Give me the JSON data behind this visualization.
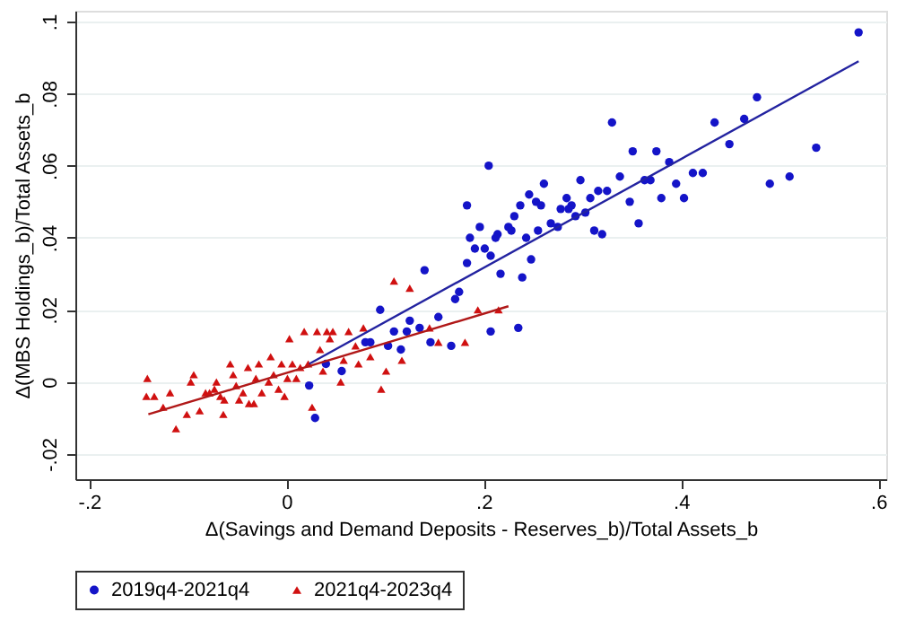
{
  "chart_data": {
    "type": "scatter",
    "xlabel": "Δ(Savings and Demand Deposits - Reserves_b)/Total Assets_b",
    "ylabel": "Δ(MBS Holdings_b)/Total Assets_b",
    "xlim": [
      -0.214,
      0.608
    ],
    "ylim": [
      -0.027,
      0.103
    ],
    "xticks": [
      {
        "value": -0.2,
        "label": "-.2"
      },
      {
        "value": 0,
        "label": "0"
      },
      {
        "value": 0.2,
        "label": ".2"
      },
      {
        "value": 0.4,
        "label": ".4"
      },
      {
        "value": 0.6,
        "label": ".6"
      }
    ],
    "yticks": [
      {
        "value": -0.02,
        "label": "-.02"
      },
      {
        "value": 0,
        "label": "0"
      },
      {
        "value": 0.02,
        "label": ".02"
      },
      {
        "value": 0.04,
        "label": ".04"
      },
      {
        "value": 0.06,
        "label": ".06"
      },
      {
        "value": 0.08,
        "label": ".08"
      },
      {
        "value": 0.1,
        "label": ".1"
      }
    ],
    "grid": "y",
    "legend": "bottom",
    "series": [
      {
        "name": "2019q4-2021q4",
        "marker": "circle",
        "color": "#1414c8",
        "x": [
          0.58,
          0.477,
          0.434,
          0.464,
          0.449,
          0.537,
          0.49,
          0.51,
          0.33,
          0.351,
          0.375,
          0.388,
          0.205,
          0.412,
          0.422,
          0.395,
          0.403,
          0.38,
          0.369,
          0.363,
          0.338,
          0.348,
          0.357,
          0.325,
          0.316,
          0.308,
          0.298,
          0.284,
          0.289,
          0.286,
          0.278,
          0.303,
          0.293,
          0.268,
          0.275,
          0.255,
          0.261,
          0.246,
          0.253,
          0.258,
          0.237,
          0.231,
          0.225,
          0.228,
          0.183,
          0.196,
          0.214,
          0.243,
          0.312,
          0.32,
          0.186,
          0.212,
          0.191,
          0.201,
          0.207,
          0.183,
          0.248,
          0.239,
          0.217,
          0.175,
          0.171,
          0.14,
          0.154,
          0.095,
          0.125,
          0.135,
          0.109,
          0.122,
          0.207,
          0.235,
          0.08,
          0.085,
          0.103,
          0.116,
          0.146,
          0.167,
          0.04,
          0.056,
          0.023,
          0.029
        ],
        "values": [
          0.097,
          0.079,
          0.072,
          0.073,
          0.066,
          0.065,
          0.055,
          0.057,
          0.072,
          0.064,
          0.064,
          0.061,
          0.06,
          0.058,
          0.058,
          0.055,
          0.051,
          0.051,
          0.056,
          0.056,
          0.057,
          0.05,
          0.044,
          0.053,
          0.053,
          0.051,
          0.056,
          0.051,
          0.049,
          0.048,
          0.048,
          0.047,
          0.046,
          0.044,
          0.043,
          0.042,
          0.055,
          0.052,
          0.05,
          0.049,
          0.049,
          0.046,
          0.043,
          0.042,
          0.049,
          0.043,
          0.041,
          0.04,
          0.042,
          0.041,
          0.04,
          0.04,
          0.037,
          0.037,
          0.035,
          0.033,
          0.034,
          0.029,
          0.03,
          0.025,
          0.023,
          0.031,
          0.018,
          0.02,
          0.017,
          0.015,
          0.014,
          0.014,
          0.014,
          0.015,
          0.011,
          0.011,
          0.01,
          0.009,
          0.011,
          0.01,
          0.005,
          0.003,
          -0.001,
          -0.01
        ]
      },
      {
        "name": "2021q4-2023q4",
        "marker": "triangle",
        "color": "#d01010",
        "x": [
          -0.141,
          -0.142,
          -0.134,
          -0.125,
          -0.118,
          -0.112,
          -0.101,
          -0.097,
          -0.094,
          -0.088,
          -0.082,
          -0.078,
          -0.073,
          -0.071,
          -0.064,
          -0.063,
          -0.067,
          -0.057,
          -0.054,
          -0.051,
          -0.048,
          -0.044,
          -0.039,
          -0.038,
          -0.033,
          -0.031,
          -0.028,
          -0.025,
          -0.018,
          -0.016,
          -0.013,
          -0.008,
          -0.005,
          -0.002,
          0.001,
          0.003,
          0.006,
          0.01,
          0.014,
          0.018,
          0.022,
          0.026,
          0.031,
          0.034,
          0.037,
          0.041,
          0.044,
          0.047,
          0.055,
          0.058,
          0.063,
          0.07,
          0.073,
          0.078,
          0.085,
          0.096,
          0.101,
          0.109,
          0.117,
          0.125,
          0.154,
          0.145,
          0.181,
          0.194,
          0.215
        ],
        "values": [
          0.001,
          -0.004,
          -0.004,
          -0.007,
          -0.003,
          -0.013,
          -0.009,
          0.0,
          0.002,
          -0.008,
          -0.003,
          -0.003,
          -0.002,
          0.0,
          -0.009,
          -0.005,
          -0.004,
          0.005,
          0.002,
          -0.001,
          -0.005,
          -0.003,
          0.004,
          -0.006,
          -0.006,
          0.001,
          0.005,
          -0.003,
          0.0,
          0.007,
          0.002,
          -0.002,
          0.005,
          -0.004,
          0.001,
          0.012,
          0.005,
          0.001,
          0.004,
          0.014,
          0.005,
          -0.007,
          0.014,
          0.009,
          0.003,
          0.014,
          0.012,
          0.014,
          0.0,
          0.006,
          0.014,
          0.01,
          0.005,
          0.015,
          0.007,
          -0.002,
          0.003,
          0.028,
          0.006,
          0.026,
          0.011,
          0.015,
          0.011,
          0.02,
          0.02
        ]
      },
      {
        "type": "line",
        "color": "#2323a0",
        "x": [
          0.023,
          0.58
        ],
        "values": [
          0.005,
          0.089
        ]
      },
      {
        "type": "line",
        "color": "#b01818",
        "x": [
          -0.14,
          0.225
        ],
        "values": [
          -0.009,
          0.021
        ]
      }
    ]
  }
}
